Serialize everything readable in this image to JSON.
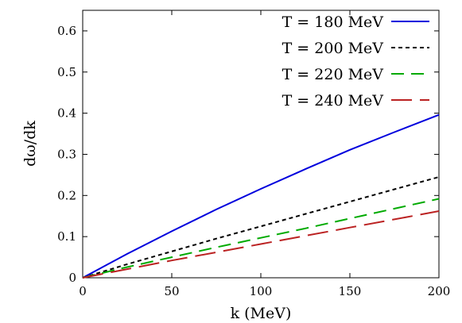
{
  "chart_data": {
    "type": "line",
    "title": "",
    "xlabel": "k (MeV)",
    "ylabel": "dω/dk",
    "xlim": [
      0,
      200
    ],
    "ylim": [
      0,
      0.65
    ],
    "xticks": [
      0,
      50,
      100,
      150,
      200
    ],
    "yticks": [
      0,
      0.1,
      0.2,
      0.3,
      0.4,
      0.5,
      0.6
    ],
    "xtick_labels": [
      "0",
      "50",
      "100",
      "150",
      "200"
    ],
    "ytick_labels": [
      "0",
      "0.1",
      "0.2",
      "0.3",
      "0.4",
      "0.5",
      "0.6"
    ],
    "grid": false,
    "legend_position": "top-right",
    "series": [
      {
        "name": "T = 180 MeV",
        "color": "#0000dd",
        "dash": "solid",
        "x": [
          0,
          25,
          50,
          75,
          100,
          125,
          150,
          175,
          200
        ],
        "y": [
          0,
          0.058,
          0.113,
          0.166,
          0.216,
          0.264,
          0.311,
          0.354,
          0.396
        ]
      },
      {
        "name": "T = 200 MeV",
        "color": "#000000",
        "dash": "dotted",
        "x": [
          0,
          25,
          50,
          75,
          100,
          125,
          150,
          175,
          200
        ],
        "y": [
          0,
          0.033,
          0.064,
          0.095,
          0.125,
          0.155,
          0.185,
          0.215,
          0.245
        ]
      },
      {
        "name": "T = 220 MeV",
        "color": "#00aa00",
        "dash": "dashed",
        "x": [
          0,
          25,
          50,
          75,
          100,
          125,
          150,
          175,
          200
        ],
        "y": [
          0,
          0.026,
          0.05,
          0.074,
          0.097,
          0.12,
          0.144,
          0.168,
          0.192
        ]
      },
      {
        "name": "T = 240 MeV",
        "color": "#bb2222",
        "dash": "longdash",
        "x": [
          0,
          25,
          50,
          75,
          100,
          125,
          150,
          175,
          200
        ],
        "y": [
          0,
          0.021,
          0.042,
          0.062,
          0.082,
          0.102,
          0.122,
          0.142,
          0.162
        ]
      }
    ]
  }
}
